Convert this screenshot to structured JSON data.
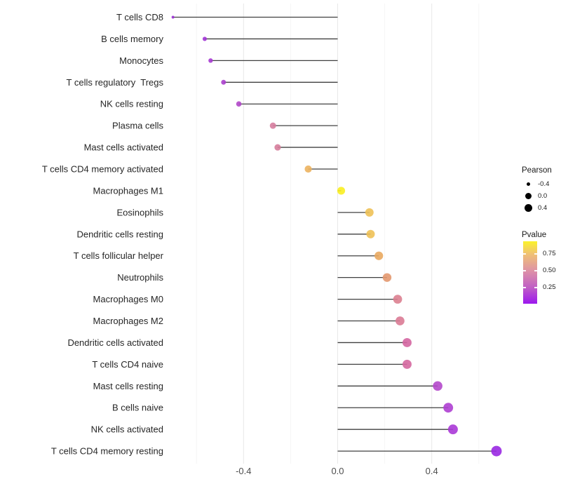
{
  "chart_data": {
    "type": "scatter",
    "variant": "lollipop",
    "orientation": "horizontal",
    "title": "",
    "xlabel": "",
    "ylabel": "",
    "xlim": [
      -0.77,
      0.75
    ],
    "grid": true,
    "x_ticks": [
      -0.4,
      0.0,
      0.4
    ],
    "x_tick_labels": [
      "-0.4",
      "0.0",
      "0.4"
    ],
    "x_minor_gridlines": [
      -0.6,
      -0.2,
      0.2,
      0.6
    ],
    "points": [
      {
        "label": "T cells CD8",
        "pearson": -0.7,
        "pvalue_est": 0.1,
        "color": "#9a2fd2"
      },
      {
        "label": "B cells memory",
        "pearson": -0.565,
        "pvalue_est": 0.13,
        "color": "#a134d6"
      },
      {
        "label": "Monocytes",
        "pearson": -0.54,
        "pvalue_est": 0.14,
        "color": "#a63ad2"
      },
      {
        "label": "T cells regulatory  Tregs",
        "pearson": -0.485,
        "pvalue_est": 0.18,
        "color": "#ab40cd"
      },
      {
        "label": "NK cells resting",
        "pearson": -0.42,
        "pvalue_est": 0.22,
        "color": "#b148c9"
      },
      {
        "label": "Plasma cells",
        "pearson": -0.275,
        "pvalue_est": 0.47,
        "color": "#d67d9e"
      },
      {
        "label": "Mast cells activated",
        "pearson": -0.255,
        "pvalue_est": 0.48,
        "color": "#d67d9b"
      },
      {
        "label": "T cells CD4 memory activated",
        "pearson": -0.125,
        "pvalue_est": 0.72,
        "color": "#ecb35f"
      },
      {
        "label": "Macrophages M1",
        "pearson": 0.015,
        "pvalue_est": 0.95,
        "color": "#f9ee21"
      },
      {
        "label": "Eosinophils",
        "pearson": 0.135,
        "pvalue_est": 0.79,
        "color": "#eec156"
      },
      {
        "label": "Dendritic cells resting",
        "pearson": 0.14,
        "pvalue_est": 0.79,
        "color": "#eec156"
      },
      {
        "label": "T cells follicular helper",
        "pearson": 0.175,
        "pvalue_est": 0.71,
        "color": "#e9a95f"
      },
      {
        "label": "Neutrophils",
        "pearson": 0.21,
        "pvalue_est": 0.62,
        "color": "#e3986f"
      },
      {
        "label": "Macrophages M0",
        "pearson": 0.255,
        "pvalue_est": 0.52,
        "color": "#dc8090"
      },
      {
        "label": "Macrophages M2",
        "pearson": 0.265,
        "pvalue_est": 0.5,
        "color": "#da7b95"
      },
      {
        "label": "Dendritic cells activated",
        "pearson": 0.295,
        "pvalue_est": 0.42,
        "color": "#d466a1"
      },
      {
        "label": "T cells CD4 naive",
        "pearson": 0.295,
        "pvalue_est": 0.42,
        "color": "#d568a0"
      },
      {
        "label": "Mast cells resting",
        "pearson": 0.425,
        "pvalue_est": 0.22,
        "color": "#b448cb"
      },
      {
        "label": "B cells naive",
        "pearson": 0.47,
        "pvalue_est": 0.17,
        "color": "#ae3fd2"
      },
      {
        "label": "NK cells activated",
        "pearson": 0.49,
        "pvalue_est": 0.15,
        "color": "#aa38d7"
      },
      {
        "label": "T cells CD4 memory resting",
        "pearson": 0.675,
        "pvalue_est": 0.05,
        "color": "#9928e2"
      }
    ],
    "legends": {
      "size": {
        "title": "Pearson",
        "values": [
          -0.4,
          0.0,
          0.4
        ],
        "labels": [
          "-0.4",
          "0.0",
          "0.4"
        ],
        "dot_color": "#000000"
      },
      "color": {
        "title": "Pvalue",
        "tick_values": [
          0.75,
          0.5,
          0.25
        ],
        "tick_labels": [
          "0.75",
          "0.50",
          "0.25"
        ],
        "gradient_stops_top_to_bottom": [
          {
            "color": "#fbf22b",
            "pos": 0
          },
          {
            "color": "#f0c274",
            "pos": 20
          },
          {
            "color": "#de92a6",
            "pos": 47
          },
          {
            "color": "#c05fc5",
            "pos": 74
          },
          {
            "color": "#9c17ee",
            "pos": 100
          }
        ]
      }
    }
  }
}
